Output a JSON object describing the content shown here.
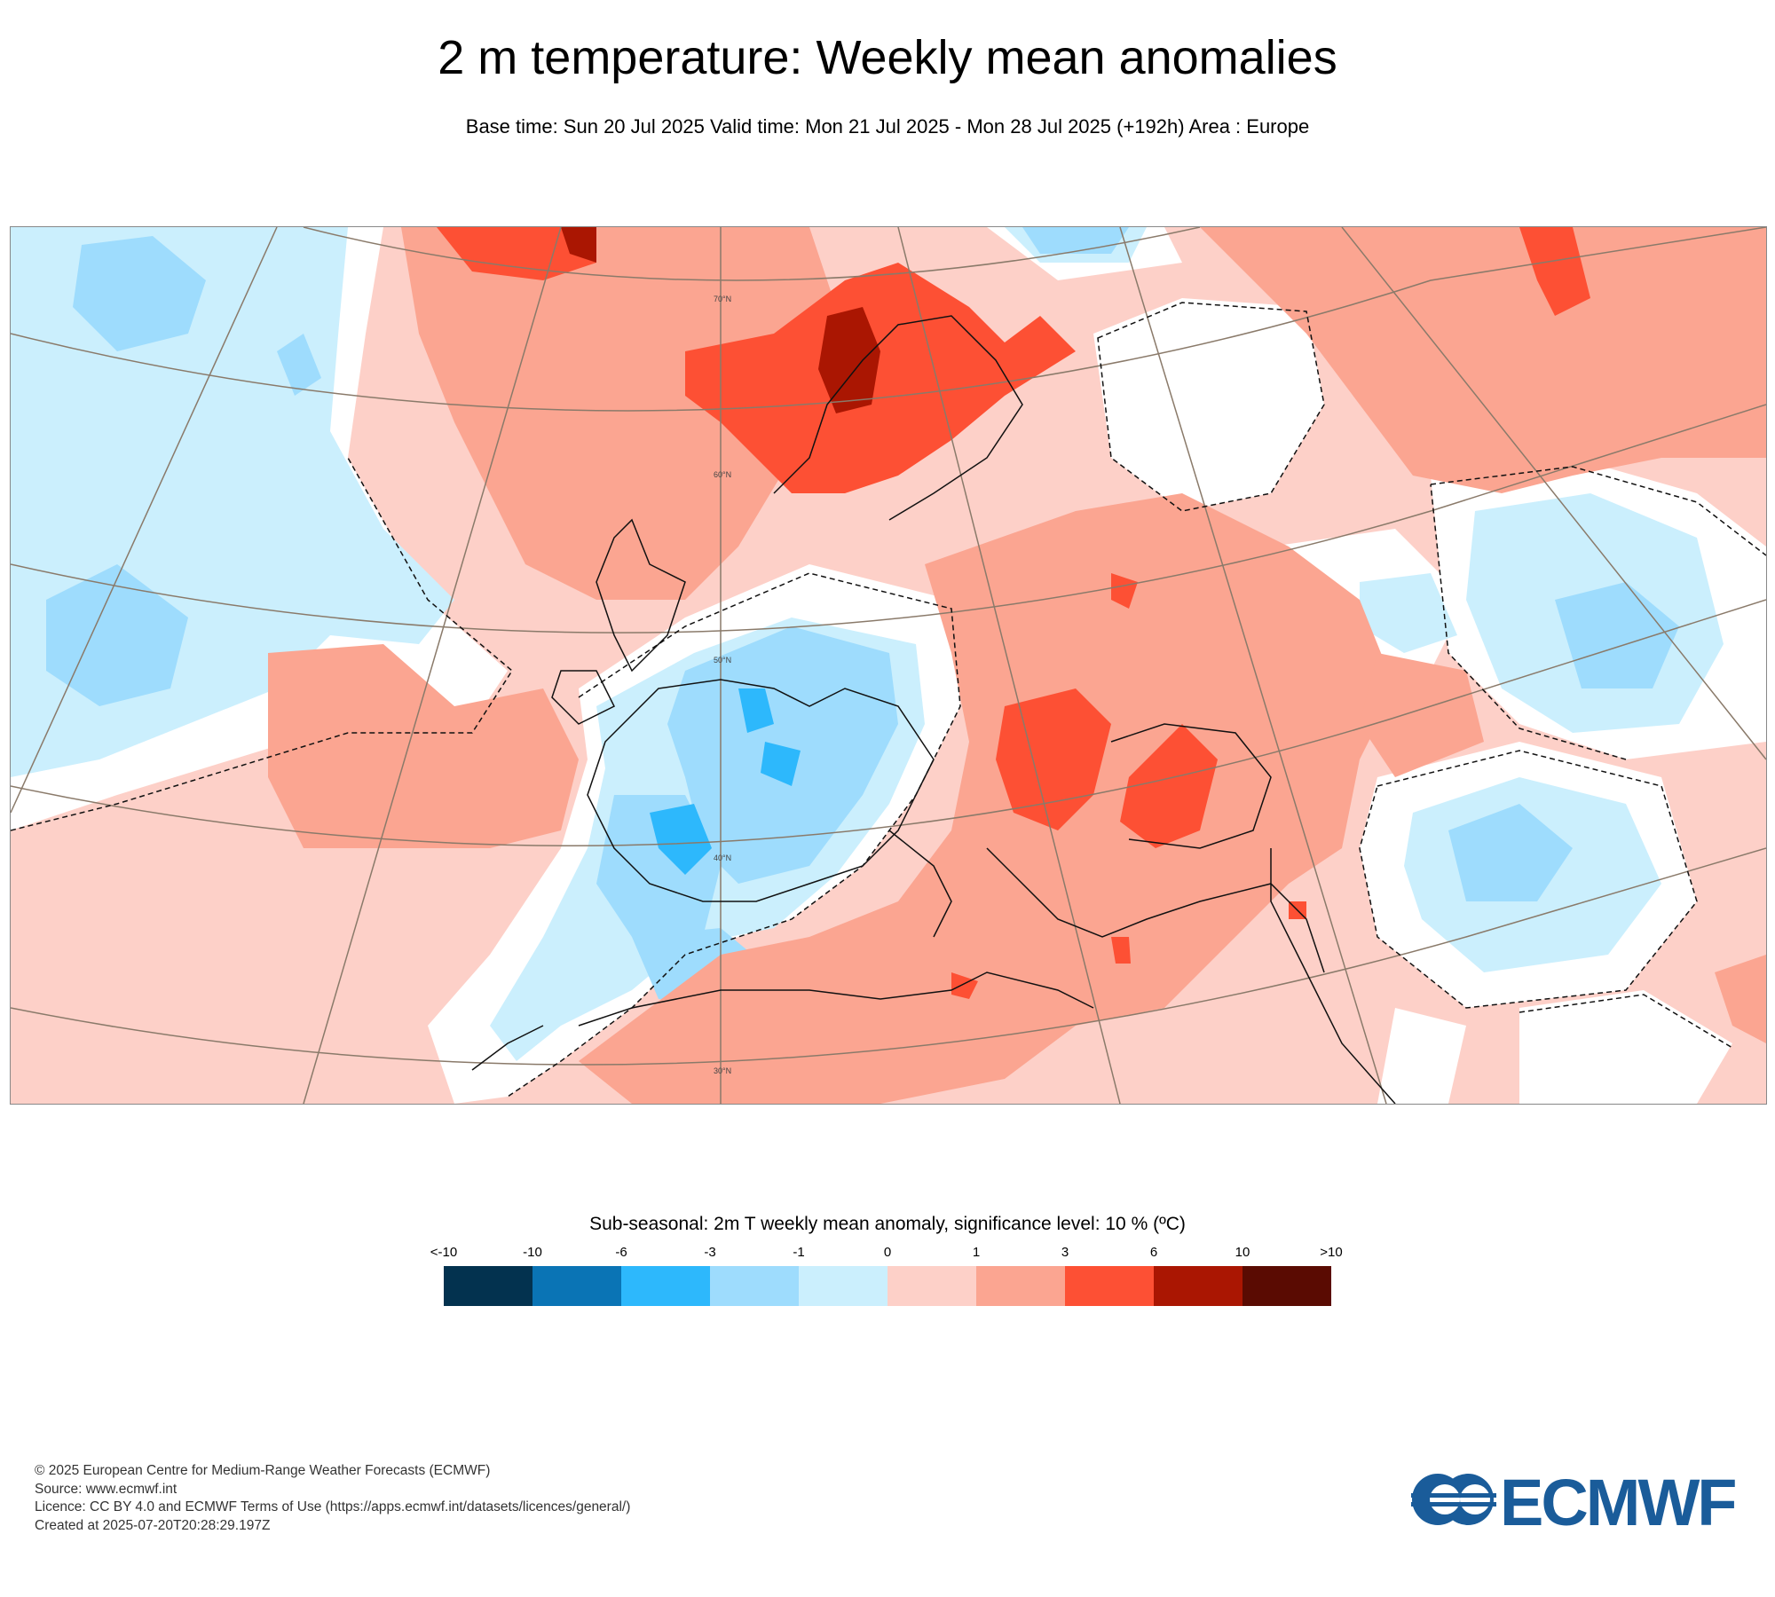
{
  "header": {
    "title": "2 m temperature: Weekly mean anomalies",
    "subtitle": "Base time: Sun 20 Jul 2025 Valid time: Mon 21 Jul 2025 - Mon 28 Jul 2025 (+192h) Area : Europe"
  },
  "map": {
    "lat_labels": [
      "70°N",
      "60°N",
      "50°N",
      "40°N",
      "30°N"
    ]
  },
  "legend": {
    "title": "Sub-seasonal: 2m T weekly mean anomaly, significance level: 10 % (ºC)",
    "ticks": [
      "<-10",
      "-10",
      "-6",
      "-3",
      "-1",
      "0",
      "1",
      "3",
      "6",
      "10",
      ">10"
    ],
    "colors": [
      "#03324f",
      "#0a74b5",
      "#2db8fc",
      "#9edcfd",
      "#cbeffd",
      "#fdd0c8",
      "#fba591",
      "#fd5034",
      "#aa1602",
      "#5a0b02"
    ]
  },
  "footer": {
    "line1": "© 2025 European Centre for Medium-Range Weather Forecasts (ECMWF)",
    "line2": "Source: www.ecmwf.int",
    "line3": "Licence: CC BY 4.0 and ECMWF Terms of Use (https://apps.ecmwf.int/datasets/licences/general/)",
    "line4": "Created at 2025-07-20T20:28:29.197Z"
  },
  "logo": {
    "text": "ECMWF",
    "color": "#1a5c9a"
  }
}
